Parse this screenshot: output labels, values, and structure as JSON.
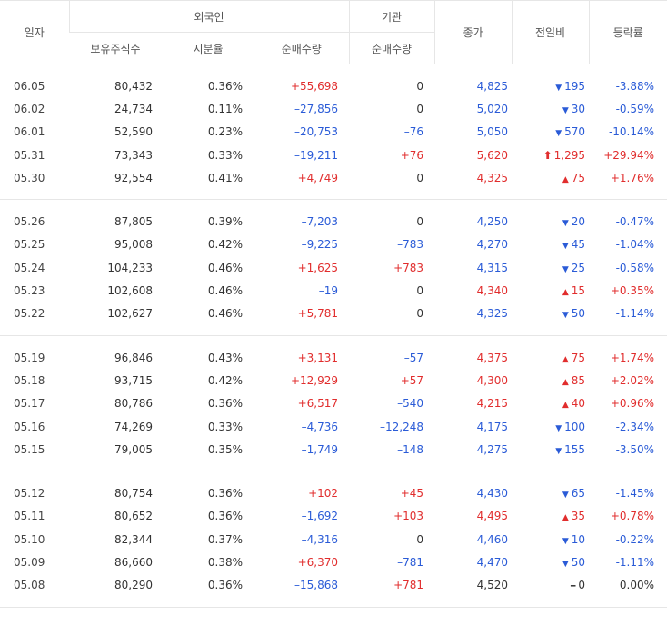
{
  "header": {
    "date": "일자",
    "foreign": "외국인",
    "holdings": "보유주식수",
    "ratio": "지분율",
    "foreign_net": "순매수량",
    "institution": "기관",
    "inst_net": "순매수량",
    "close": "종가",
    "change": "전일비",
    "rate": "등락률"
  },
  "groups": [
    [
      {
        "date": "06.05",
        "holdings": "80,432",
        "ratio": "0.36%",
        "fnet": "+55,698",
        "fnet_dir": "up",
        "inst": "0",
        "inst_dir": "flat",
        "close": "4,825",
        "close_dir": "down",
        "diff": "195",
        "diff_dir": "down",
        "rate": "-3.88%",
        "rate_dir": "down"
      },
      {
        "date": "06.02",
        "holdings": "24,734",
        "ratio": "0.11%",
        "fnet": "–27,856",
        "fnet_dir": "down",
        "inst": "0",
        "inst_dir": "flat",
        "close": "5,020",
        "close_dir": "down",
        "diff": "30",
        "diff_dir": "down",
        "rate": "-0.59%",
        "rate_dir": "down"
      },
      {
        "date": "06.01",
        "holdings": "52,590",
        "ratio": "0.23%",
        "fnet": "–20,753",
        "fnet_dir": "down",
        "inst": "–76",
        "inst_dir": "down",
        "close": "5,050",
        "close_dir": "down",
        "diff": "570",
        "diff_dir": "down",
        "rate": "-10.14%",
        "rate_dir": "down"
      },
      {
        "date": "05.31",
        "holdings": "73,343",
        "ratio": "0.33%",
        "fnet": "–19,211",
        "fnet_dir": "down",
        "inst": "+76",
        "inst_dir": "up",
        "close": "5,620",
        "close_dir": "up",
        "diff": "1,295",
        "diff_dir": "upper",
        "rate": "+29.94%",
        "rate_dir": "up"
      },
      {
        "date": "05.30",
        "holdings": "92,554",
        "ratio": "0.41%",
        "fnet": "+4,749",
        "fnet_dir": "up",
        "inst": "0",
        "inst_dir": "flat",
        "close": "4,325",
        "close_dir": "up",
        "diff": "75",
        "diff_dir": "up",
        "rate": "+1.76%",
        "rate_dir": "up"
      }
    ],
    [
      {
        "date": "05.26",
        "holdings": "87,805",
        "ratio": "0.39%",
        "fnet": "–7,203",
        "fnet_dir": "down",
        "inst": "0",
        "inst_dir": "flat",
        "close": "4,250",
        "close_dir": "down",
        "diff": "20",
        "diff_dir": "down",
        "rate": "-0.47%",
        "rate_dir": "down"
      },
      {
        "date": "05.25",
        "holdings": "95,008",
        "ratio": "0.42%",
        "fnet": "–9,225",
        "fnet_dir": "down",
        "inst": "–783",
        "inst_dir": "down",
        "close": "4,270",
        "close_dir": "down",
        "diff": "45",
        "diff_dir": "down",
        "rate": "-1.04%",
        "rate_dir": "down"
      },
      {
        "date": "05.24",
        "holdings": "104,233",
        "ratio": "0.46%",
        "fnet": "+1,625",
        "fnet_dir": "up",
        "inst": "+783",
        "inst_dir": "up",
        "close": "4,315",
        "close_dir": "down",
        "diff": "25",
        "diff_dir": "down",
        "rate": "-0.58%",
        "rate_dir": "down"
      },
      {
        "date": "05.23",
        "holdings": "102,608",
        "ratio": "0.46%",
        "fnet": "–19",
        "fnet_dir": "down",
        "inst": "0",
        "inst_dir": "flat",
        "close": "4,340",
        "close_dir": "up",
        "diff": "15",
        "diff_dir": "up",
        "rate": "+0.35%",
        "rate_dir": "up"
      },
      {
        "date": "05.22",
        "holdings": "102,627",
        "ratio": "0.46%",
        "fnet": "+5,781",
        "fnet_dir": "up",
        "inst": "0",
        "inst_dir": "flat",
        "close": "4,325",
        "close_dir": "down",
        "diff": "50",
        "diff_dir": "down",
        "rate": "-1.14%",
        "rate_dir": "down"
      }
    ],
    [
      {
        "date": "05.19",
        "holdings": "96,846",
        "ratio": "0.43%",
        "fnet": "+3,131",
        "fnet_dir": "up",
        "inst": "–57",
        "inst_dir": "down",
        "close": "4,375",
        "close_dir": "up",
        "diff": "75",
        "diff_dir": "up",
        "rate": "+1.74%",
        "rate_dir": "up"
      },
      {
        "date": "05.18",
        "holdings": "93,715",
        "ratio": "0.42%",
        "fnet": "+12,929",
        "fnet_dir": "up",
        "inst": "+57",
        "inst_dir": "up",
        "close": "4,300",
        "close_dir": "up",
        "diff": "85",
        "diff_dir": "up",
        "rate": "+2.02%",
        "rate_dir": "up"
      },
      {
        "date": "05.17",
        "holdings": "80,786",
        "ratio": "0.36%",
        "fnet": "+6,517",
        "fnet_dir": "up",
        "inst": "–540",
        "inst_dir": "down",
        "close": "4,215",
        "close_dir": "up",
        "diff": "40",
        "diff_dir": "up",
        "rate": "+0.96%",
        "rate_dir": "up"
      },
      {
        "date": "05.16",
        "holdings": "74,269",
        "ratio": "0.33%",
        "fnet": "–4,736",
        "fnet_dir": "down",
        "inst": "–12,248",
        "inst_dir": "down",
        "close": "4,175",
        "close_dir": "down",
        "diff": "100",
        "diff_dir": "down",
        "rate": "-2.34%",
        "rate_dir": "down"
      },
      {
        "date": "05.15",
        "holdings": "79,005",
        "ratio": "0.35%",
        "fnet": "–1,749",
        "fnet_dir": "down",
        "inst": "–148",
        "inst_dir": "down",
        "close": "4,275",
        "close_dir": "down",
        "diff": "155",
        "diff_dir": "down",
        "rate": "-3.50%",
        "rate_dir": "down"
      }
    ],
    [
      {
        "date": "05.12",
        "holdings": "80,754",
        "ratio": "0.36%",
        "fnet": "+102",
        "fnet_dir": "up",
        "inst": "+45",
        "inst_dir": "up",
        "close": "4,430",
        "close_dir": "down",
        "diff": "65",
        "diff_dir": "down",
        "rate": "-1.45%",
        "rate_dir": "down"
      },
      {
        "date": "05.11",
        "holdings": "80,652",
        "ratio": "0.36%",
        "fnet": "–1,692",
        "fnet_dir": "down",
        "inst": "+103",
        "inst_dir": "up",
        "close": "4,495",
        "close_dir": "up",
        "diff": "35",
        "diff_dir": "up",
        "rate": "+0.78%",
        "rate_dir": "up"
      },
      {
        "date": "05.10",
        "holdings": "82,344",
        "ratio": "0.37%",
        "fnet": "–4,316",
        "fnet_dir": "down",
        "inst": "0",
        "inst_dir": "flat",
        "close": "4,460",
        "close_dir": "down",
        "diff": "10",
        "diff_dir": "down",
        "rate": "-0.22%",
        "rate_dir": "down"
      },
      {
        "date": "05.09",
        "holdings": "86,660",
        "ratio": "0.38%",
        "fnet": "+6,370",
        "fnet_dir": "up",
        "inst": "–781",
        "inst_dir": "down",
        "close": "4,470",
        "close_dir": "down",
        "diff": "50",
        "diff_dir": "down",
        "rate": "-1.11%",
        "rate_dir": "down"
      },
      {
        "date": "05.08",
        "holdings": "80,290",
        "ratio": "0.36%",
        "fnet": "–15,868",
        "fnet_dir": "down",
        "inst": "+781",
        "inst_dir": "up",
        "close": "4,520",
        "close_dir": "flat",
        "diff": "0",
        "diff_dir": "flat",
        "rate": "0.00%",
        "rate_dir": "flat"
      }
    ]
  ],
  "colors": {
    "up": "#e12d2d",
    "down": "#2a5bd7",
    "flat": "#333333"
  }
}
